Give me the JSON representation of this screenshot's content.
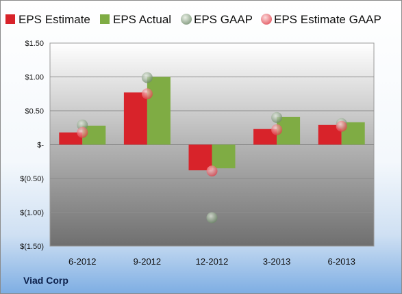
{
  "company": "Viad Corp",
  "chart_data": {
    "type": "bar",
    "categories": [
      "6-2012",
      "9-2012",
      "12-2012",
      "3-2013",
      "6-2013"
    ],
    "series": [
      {
        "name": "EPS Estimate",
        "kind": "bar",
        "color": "#d8232a",
        "values": [
          0.18,
          0.77,
          -0.38,
          0.23,
          0.29
        ]
      },
      {
        "name": "EPS Actual",
        "kind": "bar",
        "color": "#7fac44",
        "values": [
          0.28,
          1.0,
          -0.35,
          0.41,
          0.33
        ]
      },
      {
        "name": "EPS GAAP",
        "kind": "point",
        "color": "#8fa78a",
        "values": [
          0.29,
          0.99,
          -1.08,
          0.4,
          0.31
        ]
      },
      {
        "name": "EPS Estimate GAAP",
        "kind": "point",
        "color": "#f0737a",
        "values": [
          0.18,
          0.75,
          -0.39,
          0.22,
          0.27
        ]
      }
    ],
    "ylim": [
      -1.5,
      1.5
    ],
    "yticks": [
      1.5,
      1.0,
      0.5,
      0,
      -0.5,
      -1.0,
      -1.5
    ],
    "ytick_labels": [
      "$1.50",
      "$1.00",
      "$0.50",
      "$-",
      "$(0.50)",
      "$(1.00)",
      "$(1.50)"
    ],
    "grid": true,
    "legend_position": "top"
  }
}
